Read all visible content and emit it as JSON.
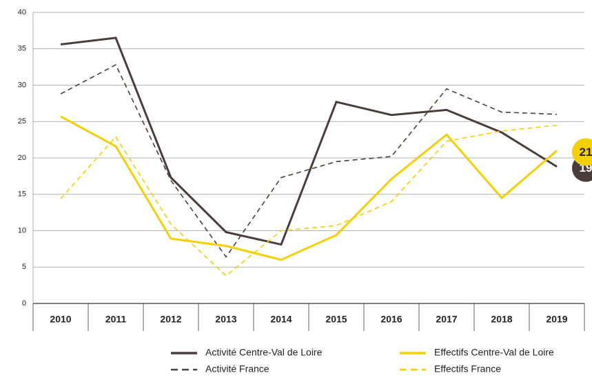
{
  "chart_data": {
    "type": "line",
    "categories": [
      "2010",
      "2011",
      "2012",
      "2013",
      "2014",
      "2015",
      "2016",
      "2017",
      "2018",
      "2019"
    ],
    "series": [
      {
        "name": "Activité Centre-Val de Loire",
        "color": "#4a3c38",
        "dash": false,
        "values": [
          35.6,
          36.5,
          17.3,
          9.8,
          8.1,
          27.7,
          25.9,
          26.6,
          23.5,
          18.8
        ],
        "end_label": "19"
      },
      {
        "name": "Activité France",
        "color": "#4a3c38",
        "dash": true,
        "values": [
          28.8,
          32.8,
          16.9,
          6.4,
          17.3,
          19.5,
          20.2,
          29.5,
          26.3,
          26.0
        ]
      },
      {
        "name": "Effectifs Centre-Val de Loire",
        "color": "#f5d000",
        "dash": false,
        "values": [
          25.7,
          21.6,
          8.9,
          7.9,
          6.0,
          9.4,
          17.1,
          23.2,
          14.5,
          21.0
        ],
        "end_label": "21"
      },
      {
        "name": "Effectifs France",
        "color": "#f5d000",
        "dash": true,
        "values": [
          14.4,
          22.9,
          10.9,
          3.8,
          10.0,
          10.7,
          14.0,
          22.3,
          23.7,
          24.5
        ]
      }
    ],
    "ylim": [
      0,
      40
    ],
    "yticks": [
      0,
      5,
      10,
      15,
      20,
      25,
      30,
      35,
      40
    ],
    "grid": true
  }
}
